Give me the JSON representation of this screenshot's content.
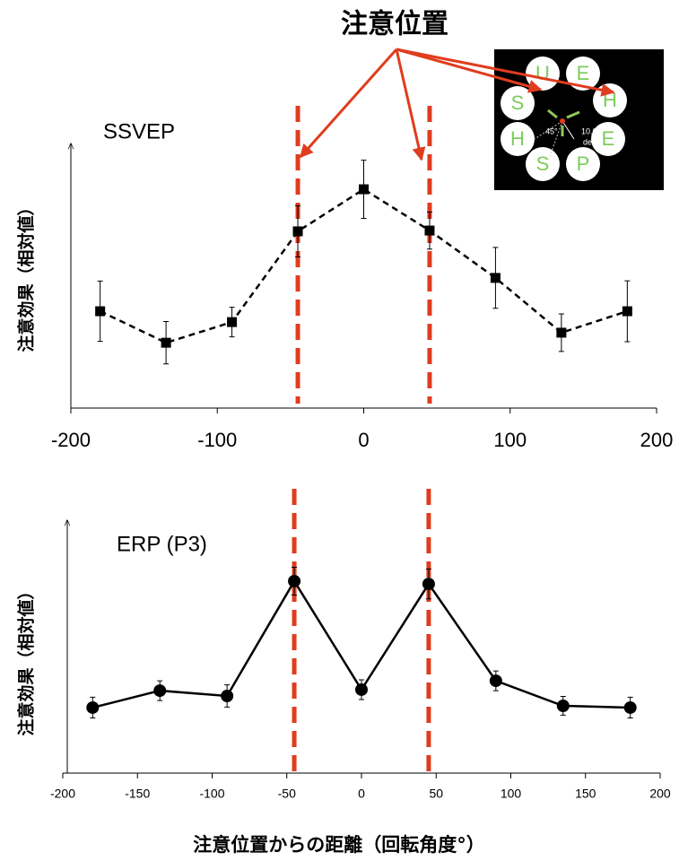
{
  "title": "注意位置",
  "x_label": "注意位置からの距離（回転角度°）",
  "inset": {
    "letters": [
      "U",
      "E",
      "S",
      "H",
      "H",
      "E",
      "S",
      "P"
    ],
    "angle_label": "45°",
    "distance_label": "10.0",
    "unit_label": "deg"
  },
  "chart_data": [
    {
      "type": "line",
      "label": "SSVEP",
      "y_label": "注意効果（相対値）",
      "x": [
        -180,
        -135,
        -90,
        -45,
        0,
        45,
        90,
        135,
        180
      ],
      "values": [
        36.6,
        24.7,
        32.5,
        66.8,
        82.7,
        67.1,
        49.2,
        28.5,
        36.6
      ],
      "errors": [
        11.4,
        8,
        5.6,
        9.7,
        11,
        7,
        11.5,
        7.1,
        11.5
      ],
      "xlim": [
        -200,
        200
      ],
      "xticks": [
        -200,
        -100,
        0,
        100,
        200
      ],
      "ylim": [
        0,
        100
      ],
      "color": "#000000",
      "line_style": "dashed",
      "marker": "square",
      "reference_lines": {
        "x": [
          -45,
          45
        ],
        "color": "#e03c1e"
      }
    },
    {
      "type": "line",
      "label": "ERP (P3)",
      "y_label": "注意効果（相対値）",
      "x": [
        -180,
        -135,
        -90,
        -45,
        0,
        45,
        90,
        135,
        180
      ],
      "values": [
        25.9,
        32.6,
        30.5,
        75.9,
        33,
        74.8,
        36.5,
        26.6,
        25.9
      ],
      "errors": [
        4.1,
        3.9,
        4.4,
        5.5,
        3.9,
        5.9,
        3.9,
        3.7,
        4.1
      ],
      "xlim": [
        -200,
        200
      ],
      "xticks": [
        -200,
        -150,
        -100,
        -50,
        0,
        50,
        100,
        150,
        200
      ],
      "ylim": [
        0,
        100
      ],
      "color": "#000000",
      "line_style": "solid",
      "marker": "circle",
      "reference_lines": {
        "x": [
          -45,
          45
        ],
        "color": "#e03c1e"
      }
    }
  ]
}
